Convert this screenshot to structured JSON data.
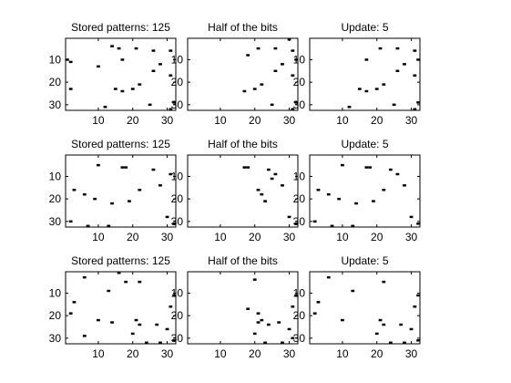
{
  "figure": {
    "background": "#ffffff",
    "ink_color": "#000000"
  },
  "chart_data": [
    {
      "type": "heatmap",
      "title": "Stored patterns: 125",
      "xticks": [
        10,
        20,
        30
      ],
      "yticks": [
        10,
        20,
        30
      ],
      "xlim": [
        0.5,
        32.5
      ],
      "ylim": [
        0.5,
        32.5
      ],
      "y_reversed": true,
      "grid": false,
      "legend": "none",
      "on_cells": [
        [
          14,
          4
        ],
        [
          16,
          5
        ],
        [
          21,
          5
        ],
        [
          26,
          6
        ],
        [
          31,
          6
        ],
        [
          1,
          10
        ],
        [
          2,
          11
        ],
        [
          17,
          10
        ],
        [
          28,
          12
        ],
        [
          10,
          13
        ],
        [
          26,
          15
        ],
        [
          31,
          17
        ],
        [
          22,
          21
        ],
        [
          15,
          23
        ],
        [
          20,
          23
        ],
        [
          2,
          23
        ],
        [
          17,
          24
        ],
        [
          25,
          30
        ],
        [
          12,
          31
        ],
        [
          32,
          29
        ],
        [
          31,
          32
        ]
      ]
    },
    {
      "type": "heatmap",
      "title": "Half of the bits",
      "xticks": [
        10,
        20,
        30
      ],
      "yticks": [
        10,
        20,
        30
      ],
      "xlim": [
        0.5,
        32.5
      ],
      "ylim": [
        0.5,
        32.5
      ],
      "y_reversed": true,
      "grid": false,
      "legend": "none",
      "on_cells": [
        [
          26,
          5
        ],
        [
          31,
          6
        ],
        [
          21,
          5
        ],
        [
          30,
          1
        ],
        [
          18,
          8
        ],
        [
          32,
          10
        ],
        [
          28,
          12
        ],
        [
          26,
          15
        ],
        [
          31,
          17
        ],
        [
          22,
          21
        ],
        [
          20,
          23
        ],
        [
          17,
          24
        ],
        [
          25,
          30
        ],
        [
          32,
          29
        ],
        [
          31,
          32
        ]
      ]
    },
    {
      "type": "heatmap",
      "title": "Update: 5",
      "xticks": [
        10,
        20,
        30
      ],
      "yticks": [
        10,
        20,
        30
      ],
      "xlim": [
        0.5,
        32.5
      ],
      "ylim": [
        0.5,
        32.5
      ],
      "y_reversed": true,
      "grid": false,
      "legend": "none",
      "on_cells": [
        [
          26,
          5
        ],
        [
          31,
          6
        ],
        [
          21,
          5
        ],
        [
          28,
          12
        ],
        [
          32,
          10
        ],
        [
          17,
          10
        ],
        [
          26,
          15
        ],
        [
          31,
          17
        ],
        [
          22,
          21
        ],
        [
          15,
          23
        ],
        [
          20,
          23
        ],
        [
          17,
          24
        ],
        [
          25,
          30
        ],
        [
          12,
          31
        ],
        [
          32,
          29
        ],
        [
          31,
          32
        ]
      ]
    },
    {
      "type": "heatmap",
      "title": "Stored patterns: 125",
      "xticks": [
        10,
        20,
        30
      ],
      "yticks": [
        10,
        20,
        30
      ],
      "xlim": [
        0.5,
        32.5
      ],
      "ylim": [
        0.5,
        32.5
      ],
      "y_reversed": true,
      "grid": false,
      "legend": "none",
      "on_cells": [
        [
          2,
          0
        ],
        [
          10,
          5
        ],
        [
          17,
          6
        ],
        [
          18,
          6
        ],
        [
          26,
          7
        ],
        [
          31,
          9
        ],
        [
          3,
          16
        ],
        [
          6,
          18
        ],
        [
          9,
          20
        ],
        [
          14,
          22
        ],
        [
          22,
          16
        ],
        [
          19,
          21
        ],
        [
          28,
          14
        ],
        [
          30,
          28
        ],
        [
          2,
          30
        ],
        [
          7,
          32
        ],
        [
          13,
          32
        ],
        [
          32,
          31
        ],
        [
          9,
          33
        ]
      ]
    },
    {
      "type": "heatmap",
      "title": "Half of the bits",
      "xticks": [
        10,
        20,
        30
      ],
      "yticks": [
        10,
        20,
        30
      ],
      "xlim": [
        0.5,
        32.5
      ],
      "ylim": [
        0.5,
        32.5
      ],
      "y_reversed": true,
      "grid": false,
      "legend": "none",
      "on_cells": [
        [
          17,
          6
        ],
        [
          18,
          6
        ],
        [
          24,
          7
        ],
        [
          26,
          9
        ],
        [
          28,
          14
        ],
        [
          21,
          16
        ],
        [
          22,
          18
        ],
        [
          23,
          21
        ],
        [
          30,
          28
        ],
        [
          32,
          31
        ],
        [
          25,
          11
        ]
      ]
    },
    {
      "type": "heatmap",
      "title": "Update: 5",
      "xticks": [
        10,
        20,
        30
      ],
      "yticks": [
        10,
        20,
        30
      ],
      "xlim": [
        0.5,
        32.5
      ],
      "ylim": [
        0.5,
        32.5
      ],
      "y_reversed": true,
      "grid": false,
      "legend": "none",
      "on_cells": [
        [
          10,
          5
        ],
        [
          17,
          6
        ],
        [
          18,
          6
        ],
        [
          24,
          7
        ],
        [
          26,
          9
        ],
        [
          3,
          16
        ],
        [
          6,
          18
        ],
        [
          9,
          20
        ],
        [
          14,
          22
        ],
        [
          22,
          16
        ],
        [
          19,
          21
        ],
        [
          28,
          14
        ],
        [
          30,
          28
        ],
        [
          32,
          31
        ],
        [
          7,
          32
        ],
        [
          13,
          32
        ],
        [
          9,
          33
        ],
        [
          2,
          30
        ]
      ]
    },
    {
      "type": "heatmap",
      "title": "Stored patterns: 125",
      "xticks": [
        10,
        20,
        30
      ],
      "yticks": [
        10,
        20,
        30
      ],
      "xlim": [
        0.5,
        32.5
      ],
      "ylim": [
        0.5,
        32.5
      ],
      "y_reversed": true,
      "grid": false,
      "legend": "none",
      "on_cells": [
        [
          6,
          3
        ],
        [
          16,
          1
        ],
        [
          20,
          0
        ],
        [
          22,
          5
        ],
        [
          18,
          5
        ],
        [
          13,
          9
        ],
        [
          3,
          14
        ],
        [
          32,
          11
        ],
        [
          31,
          16
        ],
        [
          2,
          19
        ],
        [
          10,
          22
        ],
        [
          14,
          23
        ],
        [
          21,
          22
        ],
        [
          22,
          24
        ],
        [
          27,
          24
        ],
        [
          30,
          26
        ],
        [
          6,
          29
        ],
        [
          20,
          28
        ],
        [
          28,
          32
        ],
        [
          32,
          31
        ],
        [
          24,
          32
        ]
      ]
    },
    {
      "type": "heatmap",
      "title": "Half of the bits",
      "xticks": [
        10,
        20,
        30
      ],
      "yticks": [
        10,
        20,
        30
      ],
      "xlim": [
        0.5,
        32.5
      ],
      "ylim": [
        0.5,
        32.5
      ],
      "y_reversed": true,
      "grid": false,
      "legend": "none",
      "on_cells": [
        [
          20,
          4
        ],
        [
          32,
          11
        ],
        [
          31,
          16
        ],
        [
          18,
          17
        ],
        [
          21,
          19
        ],
        [
          22,
          22
        ],
        [
          21,
          23
        ],
        [
          24,
          24
        ],
        [
          27,
          23
        ],
        [
          30,
          26
        ],
        [
          31,
          30
        ],
        [
          20,
          28
        ],
        [
          23,
          32
        ],
        [
          28,
          32
        ]
      ]
    },
    {
      "type": "heatmap",
      "title": "Update: 5",
      "xticks": [
        10,
        20,
        30
      ],
      "yticks": [
        10,
        20,
        30
      ],
      "xlim": [
        0.5,
        32.5
      ],
      "ylim": [
        0.5,
        32.5
      ],
      "y_reversed": true,
      "grid": false,
      "legend": "none",
      "on_cells": [
        [
          6,
          3
        ],
        [
          22,
          5
        ],
        [
          13,
          9
        ],
        [
          3,
          14
        ],
        [
          32,
          11
        ],
        [
          31,
          16
        ],
        [
          2,
          19
        ],
        [
          10,
          22
        ],
        [
          21,
          22
        ],
        [
          22,
          24
        ],
        [
          27,
          24
        ],
        [
          30,
          26
        ],
        [
          20,
          28
        ],
        [
          28,
          32
        ],
        [
          32,
          31
        ],
        [
          24,
          32
        ]
      ]
    }
  ]
}
